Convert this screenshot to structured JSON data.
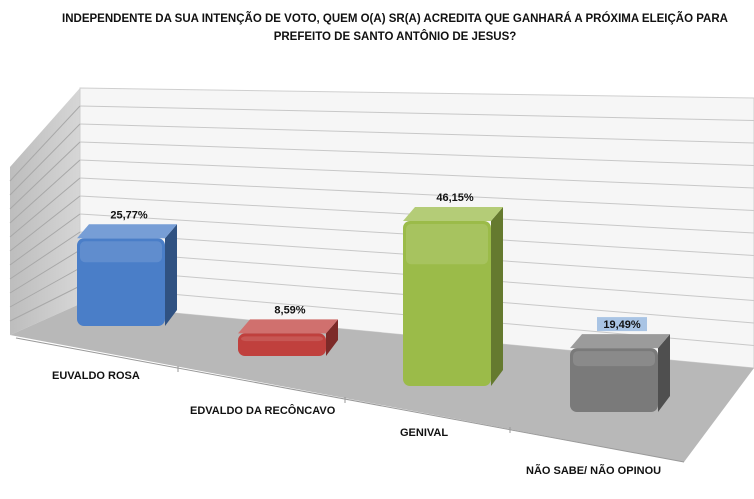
{
  "chart_data": {
    "type": "bar",
    "title": "INDEPENDENTE DA SUA INTENÇÃO DE VOTO, QUEM O(A) SR(A) ACREDITA QUE GANHARÁ A PRÓXIMA ELEIÇÃO PARA PREFEITO DE SANTO ANTÔNIO DE JESUS?",
    "categories": [
      "EUVALDO ROSA",
      "EDVALDO DA RECÔNCAVO",
      "GENIVAL",
      "NÃO SABE/ NÃO OPINOU"
    ],
    "values": [
      25.77,
      8.59,
      46.15,
      19.49
    ],
    "data_labels": [
      "25,77%",
      "8,59%",
      "46,15%",
      "19,49%"
    ],
    "colors": [
      "#4a7ec8",
      "#c0403d",
      "#9bbb49",
      "#7a7a7a"
    ],
    "ylim": [
      0,
      60
    ],
    "grid": true,
    "legend": "none",
    "style": "3d-perspective"
  }
}
